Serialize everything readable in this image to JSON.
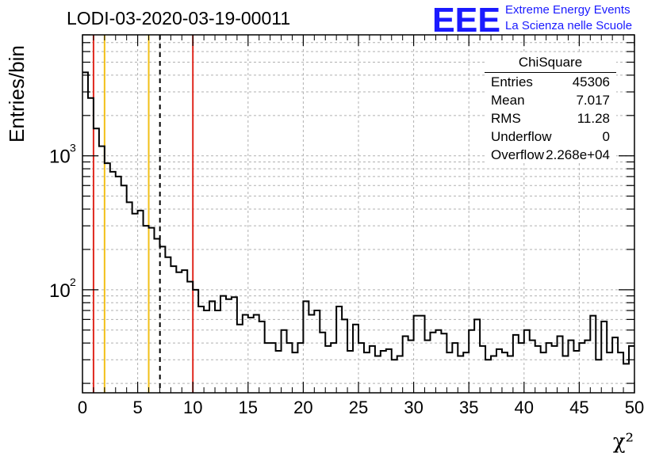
{
  "header": {
    "title": "LODI-03-2020-03-19-00011",
    "logo_text": "EEE",
    "logo_line1": "Extreme Energy Events",
    "logo_line2": "La Scienza nelle Scuole"
  },
  "stats": {
    "name": "ChiSquare",
    "rows": [
      {
        "label": "Entries",
        "value": "45306"
      },
      {
        "label": "Mean",
        "value": "7.017"
      },
      {
        "label": "RMS",
        "value": "11.28"
      },
      {
        "label": "Underflow",
        "value": "0"
      },
      {
        "label": "Overflow",
        "value": "2.268e+04"
      }
    ]
  },
  "colors": {
    "red_lines": "#e0281e",
    "yellow_lines": "#f2c018",
    "histogram": "#000000",
    "logo": "#1a1aff",
    "grid": "#b0b0b0"
  },
  "chart_data": {
    "type": "histogram",
    "xlabel": "χ²",
    "ylabel": "Entries/bin",
    "xlim": [
      0,
      50
    ],
    "ylim": [
      17,
      8000
    ],
    "yscale": "log",
    "grid": true,
    "bin_width": 0.5,
    "x_ticks": [
      0,
      5,
      10,
      15,
      20,
      25,
      30,
      35,
      40,
      45,
      50
    ],
    "x_tick_labels": [
      "0",
      "5",
      "10",
      "15",
      "20",
      "25",
      "30",
      "35",
      "40",
      "45",
      "50"
    ],
    "y_ticks": [
      {
        "value": 100,
        "base": "10",
        "exp": "2"
      },
      {
        "value": 1000,
        "base": "10",
        "exp": "3"
      }
    ],
    "vlines": [
      {
        "x": 1,
        "color": "red",
        "style": "solid"
      },
      {
        "x": 2,
        "color": "yellow",
        "style": "solid"
      },
      {
        "x": 6,
        "color": "yellow",
        "style": "solid"
      },
      {
        "x": 7.017,
        "color": "black",
        "style": "dashed"
      },
      {
        "x": 10,
        "color": "red",
        "style": "solid"
      }
    ],
    "values": [
      4200,
      2700,
      1600,
      1180,
      880,
      760,
      700,
      600,
      450,
      370,
      390,
      300,
      290,
      240,
      210,
      175,
      150,
      135,
      140,
      115,
      100,
      75,
      70,
      82,
      70,
      90,
      85,
      88,
      55,
      65,
      62,
      65,
      58,
      40,
      40,
      35,
      50,
      40,
      34,
      40,
      82,
      65,
      70,
      48,
      38,
      40,
      75,
      60,
      35,
      55,
      40,
      34,
      38,
      32,
      35,
      36,
      30,
      32,
      45,
      42,
      64,
      64,
      42,
      48,
      50,
      47,
      34,
      40,
      32,
      34,
      50,
      60,
      38,
      30,
      32,
      36,
      34,
      32,
      46,
      40,
      50,
      42,
      38,
      34,
      40,
      38,
      45,
      32,
      42,
      35,
      40,
      42,
      64,
      30,
      58,
      34,
      44,
      34,
      28,
      38
    ]
  }
}
